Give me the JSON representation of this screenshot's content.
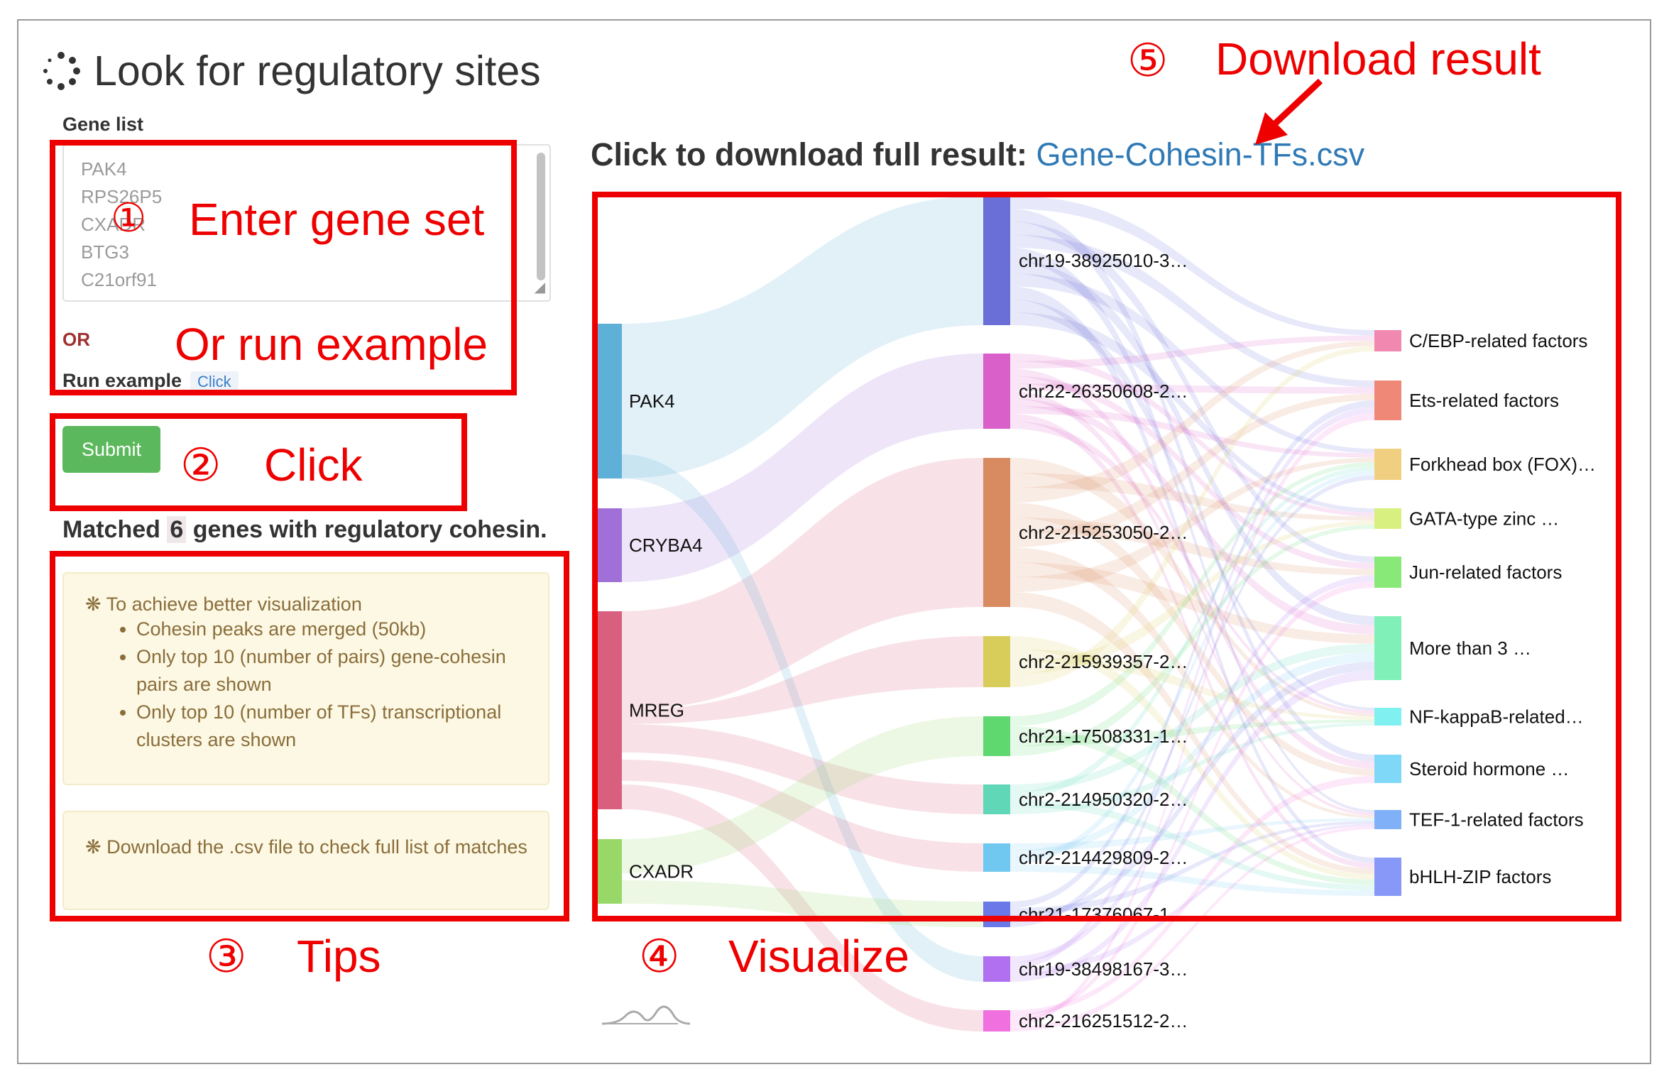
{
  "page": {
    "title": "Look for regulatory sites"
  },
  "form": {
    "gene_list_label": "Gene list",
    "gene_list_lines": [
      "PAK4",
      "RPS26P5",
      "CXADR",
      "BTG3",
      "C21orf91"
    ],
    "or_label": "OR",
    "run_example_label": "Run example",
    "run_example_button": "Click",
    "submit_label": "Submit"
  },
  "result": {
    "matched_prefix": "Matched",
    "matched_count": "6",
    "matched_suffix": "genes with regulatory cohesin.",
    "download_prefix": "Click to download full result:",
    "download_filename": "Gene-Cohesin-TFs.csv"
  },
  "tips": {
    "visualization_heading": "To achieve better visualization",
    "visualization_items": [
      "Cohesin peaks are merged (50kb)",
      "Only top 10 (number of pairs) gene-cohesin pairs are shown",
      "Only top 10 (number of TFs) transcriptional clusters are shown"
    ],
    "download_tip": "Download the .csv file to check full list of matches"
  },
  "annotations": {
    "step1_num": "①",
    "step1_text": "Enter gene set",
    "step1_alt": "Or run example",
    "step2_num": "②",
    "step2_text": "Click",
    "step3_num": "③",
    "step3_text": "Tips",
    "step4_num": "④",
    "step4_text": "Visualize",
    "step5_num": "⑤",
    "step5_text": "Download result"
  },
  "sankey": {
    "genes": [
      {
        "label": "PAK4",
        "color": "#5fb0d8"
      },
      {
        "label": "CRYBA4",
        "color": "#a070d8"
      },
      {
        "label": "MREG",
        "color": "#d8607e"
      },
      {
        "label": "CXADR",
        "color": "#98d868"
      }
    ],
    "cohesin_sites": [
      {
        "label": "chr19-38925010-3…",
        "color": "#6a6fd8"
      },
      {
        "label": "chr22-26350608-2…",
        "color": "#d860c8"
      },
      {
        "label": "chr2-215253050-2…",
        "color": "#d88a60"
      },
      {
        "label": "chr2-215939357-2…",
        "color": "#d8cc5a"
      },
      {
        "label": "chr21-17508331-1…",
        "color": "#60d870"
      },
      {
        "label": "chr2-214950320-2…",
        "color": "#60d8b8"
      },
      {
        "label": "chr2-214429809-2…",
        "color": "#70c8f0"
      },
      {
        "label": "chr21-17376067-1…",
        "color": "#6a78e8"
      },
      {
        "label": "chr19-38498167-3…",
        "color": "#b070f0"
      },
      {
        "label": "chr2-216251512-2…",
        "color": "#f070e0"
      }
    ],
    "tf_clusters": [
      {
        "label": "C/EBP-related factors",
        "color": "#f088b0"
      },
      {
        "label": "Ets-related factors",
        "color": "#f08878"
      },
      {
        "label": "Forkhead box (FOX)…",
        "color": "#f0d080"
      },
      {
        "label": "GATA-type zinc …",
        "color": "#d8f080"
      },
      {
        "label": "Jun-related factors",
        "color": "#88e878"
      },
      {
        "label": "More than 3 …",
        "color": "#80f0b8"
      },
      {
        "label": "NF-kappaB-related…",
        "color": "#80f0f0"
      },
      {
        "label": "Steroid hormone …",
        "color": "#80d8f8"
      },
      {
        "label": "TEF-1-related factors",
        "color": "#80b0f8"
      },
      {
        "label": "bHLH-ZIP factors",
        "color": "#8898f8"
      }
    ]
  }
}
